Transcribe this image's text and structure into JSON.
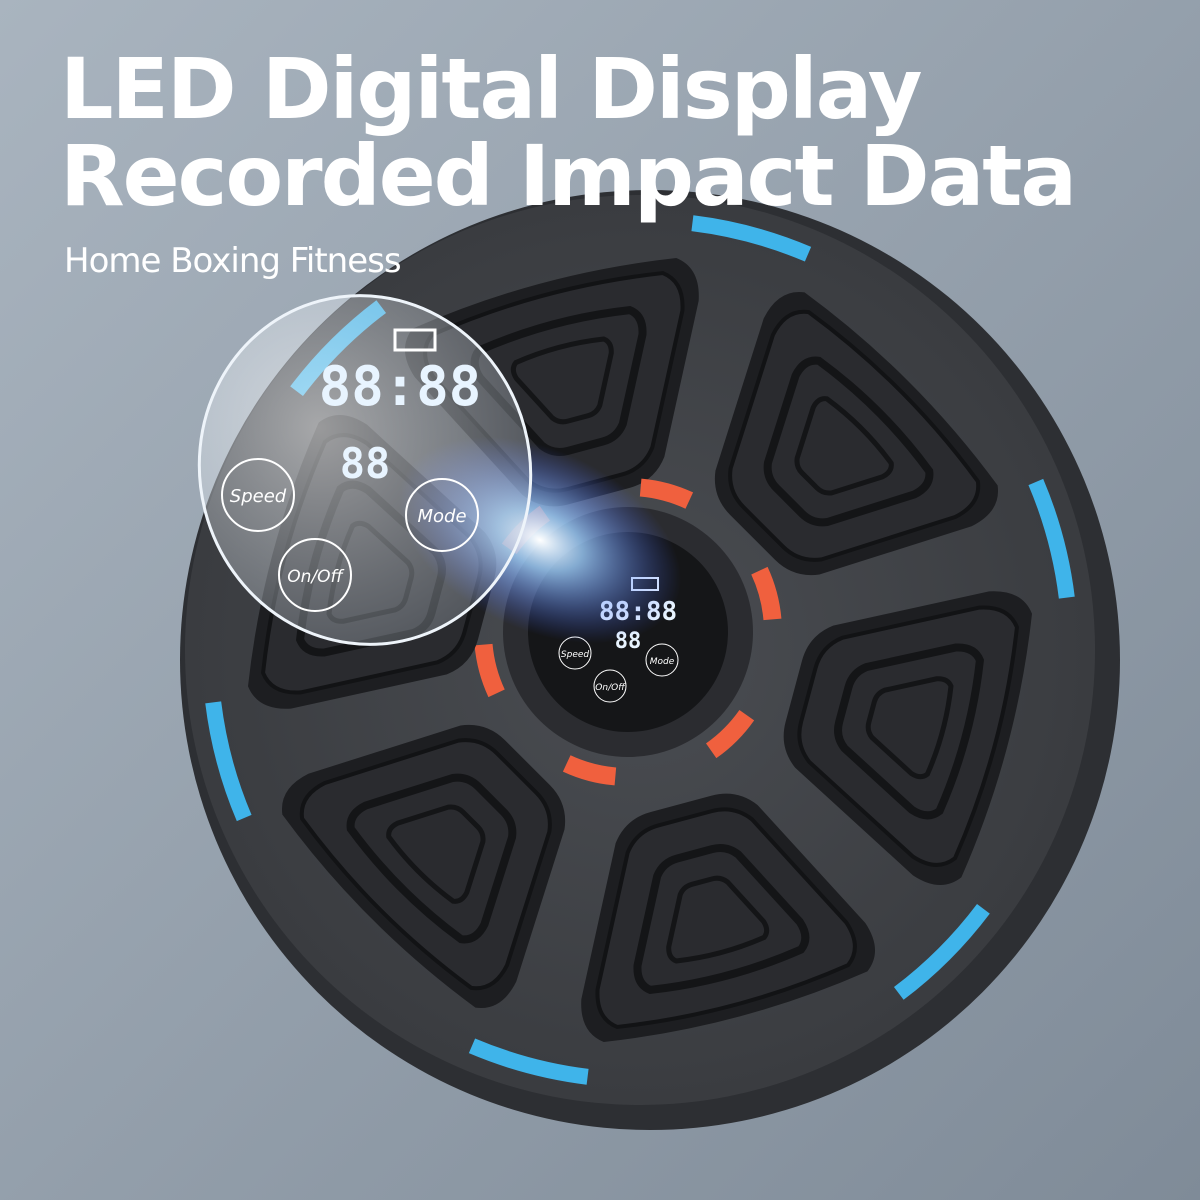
{
  "header": {
    "title_lines": [
      "LED Digital Display",
      "Recorded Impact Data"
    ],
    "subtitle": "Home Boxing Fitness"
  },
  "display": {
    "clock": "88:88",
    "counter": "88",
    "buttons": [
      "Speed",
      "Mode",
      "On/Off"
    ]
  }
}
